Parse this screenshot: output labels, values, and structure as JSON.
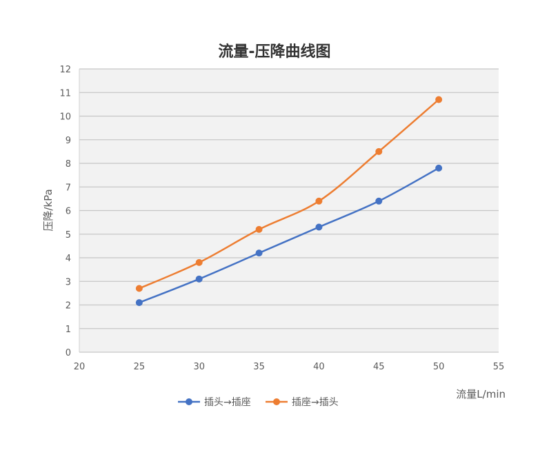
{
  "chart_data": {
    "type": "line",
    "title": "流量-压降曲线图",
    "xlabel": "流量L/min",
    "ylabel": "压降/kPa",
    "xlim": [
      20,
      55
    ],
    "ylim": [
      0,
      12
    ],
    "xticks": [
      20,
      25,
      30,
      35,
      40,
      45,
      50,
      55
    ],
    "yticks": [
      0,
      1,
      2,
      3,
      4,
      5,
      6,
      7,
      8,
      9,
      10,
      11,
      12
    ],
    "grid": true,
    "legend": "bottom",
    "x": [
      25,
      30,
      35,
      40,
      45,
      50
    ],
    "series": [
      {
        "name": "插头→插座",
        "color": "#4472C4",
        "values": [
          2.1,
          3.1,
          4.2,
          5.3,
          6.4,
          7.8
        ]
      },
      {
        "name": "插座→插头",
        "color": "#ED7D31",
        "values": [
          2.7,
          3.8,
          5.2,
          6.4,
          8.5,
          10.7
        ]
      }
    ]
  }
}
